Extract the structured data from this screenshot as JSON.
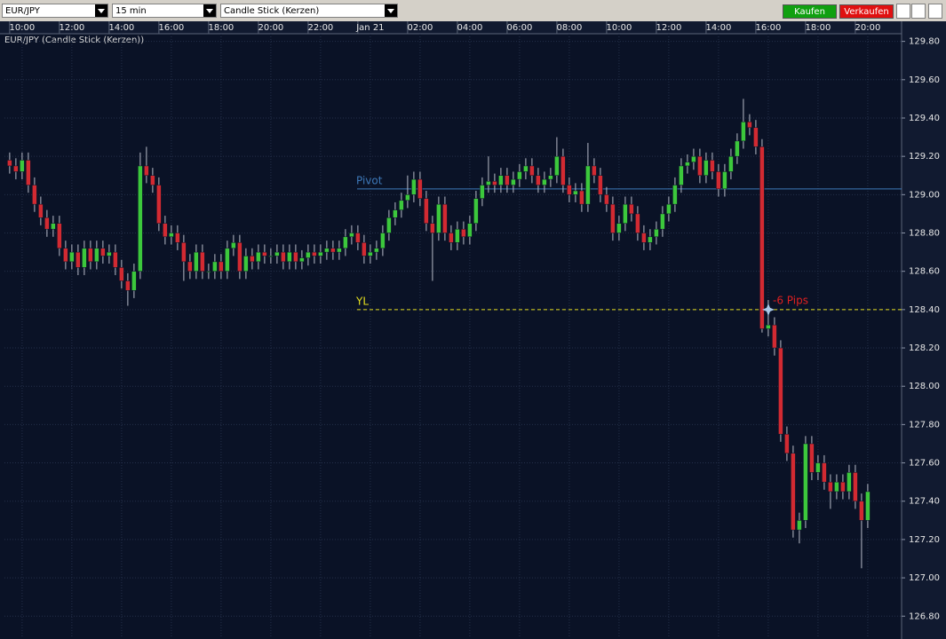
{
  "toolbar": {
    "symbol": "EUR/JPY",
    "interval": "15 min",
    "chart_type": "Candle Stick (Kerzen)",
    "buy": "Kaufen",
    "sell": "Verkaufen"
  },
  "chart_data": {
    "type": "candlestick",
    "title": "EUR/JPY (Candle Stick (Kerzen))",
    "up_color": "#3cc83c",
    "down_color": "#d22a32",
    "grid": true,
    "xlim": [
      9.29,
      45.36
    ],
    "xticks": [
      {
        "value": 10,
        "label": "10:00"
      },
      {
        "value": 12,
        "label": "12:00"
      },
      {
        "value": 14,
        "label": "14:00"
      },
      {
        "value": 16,
        "label": "16:00"
      },
      {
        "value": 18,
        "label": "18:00"
      },
      {
        "value": 20,
        "label": "20:00"
      },
      {
        "value": 22,
        "label": "22:00"
      },
      {
        "value": 24,
        "label": "Jan 21"
      },
      {
        "value": 26,
        "label": "02:00"
      },
      {
        "value": 28,
        "label": "04:00"
      },
      {
        "value": 30,
        "label": "06:00"
      },
      {
        "value": 32,
        "label": "08:00"
      },
      {
        "value": 34,
        "label": "10:00"
      },
      {
        "value": 36,
        "label": "12:00"
      },
      {
        "value": 38,
        "label": "14:00"
      },
      {
        "value": 40,
        "label": "16:00"
      },
      {
        "value": 42,
        "label": "18:00"
      },
      {
        "value": 44,
        "label": "20:00"
      }
    ],
    "ylim": [
      126.69,
      129.84
    ],
    "yticks": [
      {
        "value": 126.8,
        "label": "126.80"
      },
      {
        "value": 127.0,
        "label": "127.00"
      },
      {
        "value": 127.2,
        "label": "127.20"
      },
      {
        "value": 127.4,
        "label": "127.40"
      },
      {
        "value": 127.6,
        "label": "127.60"
      },
      {
        "value": 127.8,
        "label": "127.80"
      },
      {
        "value": 128.0,
        "label": "128.00"
      },
      {
        "value": 128.2,
        "label": "128.20"
      },
      {
        "value": 128.4,
        "label": "128.40"
      },
      {
        "value": 128.6,
        "label": "128.60"
      },
      {
        "value": 128.8,
        "label": "128.80"
      },
      {
        "value": 129.0,
        "label": "129.00"
      },
      {
        "value": 129.2,
        "label": "129.20"
      },
      {
        "value": 129.4,
        "label": "129.40"
      },
      {
        "value": 129.6,
        "label": "129.60"
      },
      {
        "value": 129.8,
        "label": "129.80"
      }
    ],
    "lines": [
      {
        "name": "Pivot",
        "value": 129.03,
        "color": "#3d78b8",
        "dashed": false
      },
      {
        "name": "YL",
        "value": 128.4,
        "color": "#e6e01e",
        "dashed": true
      }
    ],
    "annotation": {
      "text": "-6 Pips",
      "value": 128.4,
      "color": "#e02020"
    },
    "x": [
      9.5,
      9.75,
      10,
      10.25,
      10.5,
      10.75,
      11,
      11.25,
      11.5,
      11.75,
      12,
      12.25,
      12.5,
      12.75,
      13,
      13.25,
      13.5,
      13.75,
      14,
      14.25,
      14.5,
      14.75,
      15,
      15.25,
      15.5,
      15.75,
      16,
      16.25,
      16.5,
      16.75,
      17,
      17.25,
      17.5,
      17.75,
      18,
      18.25,
      18.5,
      18.75,
      19,
      19.25,
      19.5,
      19.75,
      20,
      20.25,
      20.5,
      20.75,
      21,
      21.25,
      21.5,
      21.75,
      22,
      22.25,
      22.5,
      22.75,
      23,
      23.25,
      23.5,
      23.75,
      24,
      24.25,
      24.5,
      24.75,
      25,
      25.25,
      25.5,
      25.75,
      26,
      26.25,
      26.5,
      26.75,
      27,
      27.25,
      27.5,
      27.75,
      28,
      28.25,
      28.5,
      28.75,
      29,
      29.25,
      29.5,
      29.75,
      30,
      30.25,
      30.5,
      30.75,
      31,
      31.25,
      31.5,
      31.75,
      32,
      32.25,
      32.5,
      32.75,
      33,
      33.25,
      33.5,
      33.75,
      34,
      34.25,
      34.5,
      34.75,
      35,
      35.25,
      35.5,
      35.75,
      36,
      36.25,
      36.5,
      36.75,
      37,
      37.25,
      37.5,
      37.75,
      38,
      38.25,
      38.5,
      38.75,
      39,
      39.25,
      39.5,
      39.75,
      40,
      40.25,
      40.5,
      40.75,
      41,
      41.25,
      41.5,
      41.75,
      42,
      42.25,
      42.5,
      42.75,
      43,
      43.25,
      43.5,
      43.75,
      44
    ],
    "open": [
      129.18,
      129.15,
      129.12,
      129.18,
      129.05,
      128.95,
      128.88,
      128.82,
      128.85,
      128.72,
      128.65,
      128.7,
      128.62,
      128.72,
      128.65,
      128.72,
      128.68,
      128.7,
      128.62,
      128.55,
      128.5,
      128.6,
      129.15,
      129.1,
      129.05,
      128.85,
      128.78,
      128.8,
      128.75,
      128.65,
      128.6,
      128.7,
      128.6,
      128.6,
      128.65,
      128.6,
      128.72,
      128.75,
      128.6,
      128.68,
      128.65,
      128.7,
      128.68,
      128.68,
      128.7,
      128.65,
      128.7,
      128.65,
      128.67,
      128.7,
      128.68,
      128.7,
      128.72,
      128.7,
      128.72,
      128.78,
      128.8,
      128.75,
      128.68,
      128.7,
      128.72,
      128.8,
      128.88,
      128.92,
      128.97,
      129.0,
      129.08,
      128.98,
      128.85,
      128.8,
      128.95,
      128.8,
      128.75,
      128.82,
      128.78,
      128.85,
      128.98,
      129.05,
      129.07,
      129.05,
      129.1,
      129.05,
      129.08,
      129.12,
      129.15,
      129.1,
      129.05,
      129.08,
      129.1,
      129.2,
      129.05,
      129.0,
      129.02,
      128.95,
      129.15,
      129.1,
      129.0,
      128.95,
      128.8,
      128.85,
      128.95,
      128.9,
      128.8,
      128.75,
      128.78,
      128.82,
      128.9,
      128.95,
      129.05,
      129.15,
      129.17,
      129.2,
      129.1,
      129.18,
      129.12,
      129.03,
      129.12,
      129.2,
      129.28,
      129.38,
      129.35,
      129.25,
      128.3,
      128.32,
      128.2,
      127.75,
      127.65,
      127.25,
      127.3,
      127.7,
      127.55,
      127.6,
      127.5,
      127.45,
      127.5,
      127.45,
      127.55,
      127.4,
      127.3
    ],
    "high": [
      129.22,
      129.19,
      129.22,
      129.22,
      129.09,
      128.99,
      128.92,
      128.89,
      128.89,
      128.76,
      128.74,
      128.74,
      128.76,
      128.76,
      128.76,
      128.76,
      128.74,
      128.74,
      128.66,
      128.59,
      128.64,
      129.22,
      129.25,
      129.14,
      129.09,
      128.89,
      128.84,
      128.84,
      128.79,
      128.69,
      128.74,
      128.74,
      128.64,
      128.69,
      128.69,
      128.76,
      128.79,
      128.79,
      128.72,
      128.72,
      128.74,
      128.74,
      128.72,
      128.74,
      128.74,
      128.74,
      128.74,
      128.71,
      128.74,
      128.74,
      128.74,
      128.76,
      128.76,
      128.76,
      128.82,
      128.84,
      128.84,
      128.79,
      128.74,
      128.76,
      128.84,
      128.92,
      128.96,
      129.01,
      129.1,
      129.12,
      129.12,
      129.02,
      128.89,
      128.99,
      128.99,
      128.84,
      128.86,
      128.86,
      128.89,
      129.02,
      129.09,
      129.2,
      129.11,
      129.14,
      129.14,
      129.12,
      129.16,
      129.19,
      129.19,
      129.14,
      129.12,
      129.14,
      129.3,
      129.24,
      129.09,
      129.06,
      129.06,
      129.27,
      129.19,
      129.14,
      129.04,
      128.99,
      128.89,
      128.99,
      128.99,
      128.94,
      128.84,
      128.82,
      128.86,
      128.94,
      128.99,
      129.09,
      129.19,
      129.21,
      129.24,
      129.24,
      129.22,
      129.22,
      129.16,
      129.16,
      129.24,
      129.32,
      129.5,
      129.42,
      129.39,
      129.29,
      128.45,
      128.36,
      128.24,
      127.79,
      127.69,
      127.34,
      127.74,
      127.74,
      127.64,
      127.64,
      127.54,
      127.54,
      127.54,
      127.59,
      127.59,
      127.44,
      127.49
    ],
    "low": [
      129.11,
      129.08,
      129.08,
      129.01,
      128.91,
      128.84,
      128.78,
      128.78,
      128.68,
      128.61,
      128.61,
      128.58,
      128.58,
      128.61,
      128.61,
      128.64,
      128.64,
      128.58,
      128.51,
      128.42,
      128.46,
      128.56,
      129.06,
      129.01,
      128.81,
      128.74,
      128.74,
      128.71,
      128.55,
      128.56,
      128.56,
      128.56,
      128.56,
      128.56,
      128.56,
      128.56,
      128.68,
      128.56,
      128.56,
      128.61,
      128.61,
      128.64,
      128.64,
      128.64,
      128.61,
      128.61,
      128.61,
      128.61,
      128.63,
      128.64,
      128.64,
      128.66,
      128.66,
      128.66,
      128.68,
      128.74,
      128.71,
      128.64,
      128.64,
      128.66,
      128.68,
      128.76,
      128.84,
      128.88,
      128.93,
      128.96,
      128.94,
      128.81,
      128.55,
      128.76,
      128.76,
      128.71,
      128.71,
      128.74,
      128.74,
      128.81,
      128.94,
      129.01,
      129.01,
      129.01,
      129.01,
      129.01,
      129.04,
      129.08,
      129.06,
      129.01,
      129.01,
      129.04,
      129.06,
      129.01,
      128.96,
      128.96,
      128.91,
      128.91,
      129.06,
      128.96,
      128.91,
      128.76,
      128.76,
      128.81,
      128.86,
      128.76,
      128.71,
      128.71,
      128.74,
      128.78,
      128.86,
      128.91,
      129.01,
      129.11,
      129.13,
      129.06,
      129.06,
      129.08,
      128.99,
      128.99,
      129.08,
      129.16,
      129.24,
      129.31,
      129.21,
      128.28,
      128.26,
      128.16,
      127.71,
      127.61,
      127.21,
      127.18,
      127.26,
      127.51,
      127.51,
      127.46,
      127.36,
      127.41,
      127.41,
      127.41,
      127.36,
      127.05,
      127.26
    ],
    "close": [
      129.15,
      129.12,
      129.18,
      129.05,
      128.95,
      128.88,
      128.82,
      128.85,
      128.72,
      128.65,
      128.7,
      128.62,
      128.72,
      128.65,
      128.72,
      128.68,
      128.7,
      128.62,
      128.55,
      128.5,
      128.6,
      129.15,
      129.1,
      129.05,
      128.85,
      128.78,
      128.8,
      128.75,
      128.65,
      128.6,
      128.7,
      128.6,
      128.6,
      128.65,
      128.6,
      128.72,
      128.75,
      128.6,
      128.68,
      128.65,
      128.7,
      128.68,
      128.68,
      128.7,
      128.65,
      128.7,
      128.65,
      128.67,
      128.7,
      128.68,
      128.7,
      128.72,
      128.7,
      128.72,
      128.78,
      128.8,
      128.75,
      128.68,
      128.7,
      128.72,
      128.8,
      128.88,
      128.92,
      128.97,
      129.0,
      129.08,
      128.98,
      128.85,
      128.8,
      128.95,
      128.8,
      128.75,
      128.82,
      128.78,
      128.85,
      128.98,
      129.05,
      129.07,
      129.05,
      129.1,
      129.05,
      129.08,
      129.12,
      129.15,
      129.1,
      129.05,
      129.08,
      129.1,
      129.2,
      129.05,
      129.0,
      129.02,
      128.95,
      129.15,
      129.1,
      129.0,
      128.95,
      128.8,
      128.85,
      128.95,
      128.9,
      128.8,
      128.75,
      128.78,
      128.82,
      128.9,
      128.95,
      129.05,
      129.15,
      129.17,
      129.2,
      129.1,
      129.18,
      129.12,
      129.03,
      129.12,
      129.2,
      129.28,
      129.38,
      129.35,
      129.25,
      128.3,
      128.32,
      128.2,
      127.75,
      127.65,
      127.25,
      127.3,
      127.7,
      127.55,
      127.6,
      127.5,
      127.45,
      127.5,
      127.45,
      127.55,
      127.4,
      127.3,
      127.45
    ]
  }
}
